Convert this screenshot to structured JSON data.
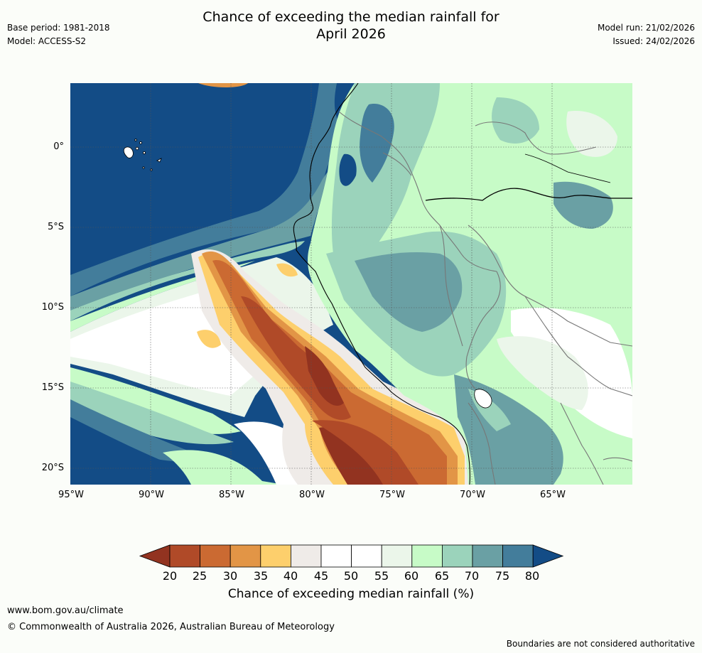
{
  "title": {
    "line1": "Chance of exceeding the median rainfall for",
    "line2": "April 2026"
  },
  "meta_left": {
    "base_period": "Base period: 1981-2018",
    "model": "Model: ACCESS-S2"
  },
  "meta_right": {
    "model_run": "Model run: 21/02/2026",
    "issued": "Issued: 24/02/2026"
  },
  "map": {
    "lat_labels": [
      "0°",
      "5°S",
      "10°S",
      "15°S",
      "20°S"
    ],
    "lon_labels": [
      "95°W",
      "90°W",
      "85°W",
      "80°W",
      "75°W",
      "70°W",
      "65°W"
    ],
    "ocean_color": "#134c86"
  },
  "colorbar": {
    "title": "Chance of exceeding median rainfall (%)",
    "ticks": [
      "20",
      "25",
      "30",
      "35",
      "40",
      "45",
      "50",
      "55",
      "60",
      "65",
      "70",
      "75",
      "80"
    ],
    "colors": [
      "#923320",
      "#b04a28",
      "#cb6a32",
      "#e29546",
      "#fdcf6c",
      "#efebe8",
      "#ffffff",
      "#ffffff",
      "#ebf6ea",
      "#c7fbc7",
      "#9bd3bb",
      "#6aa0a4",
      "#437d9b",
      "#134c86"
    ]
  },
  "footer": {
    "url": "www.bom.gov.au/climate",
    "copyright": "© Commonwealth of Australia 2026, Australian Bureau of Meteorology",
    "disclaimer": "Boundaries are not considered authoritative"
  }
}
